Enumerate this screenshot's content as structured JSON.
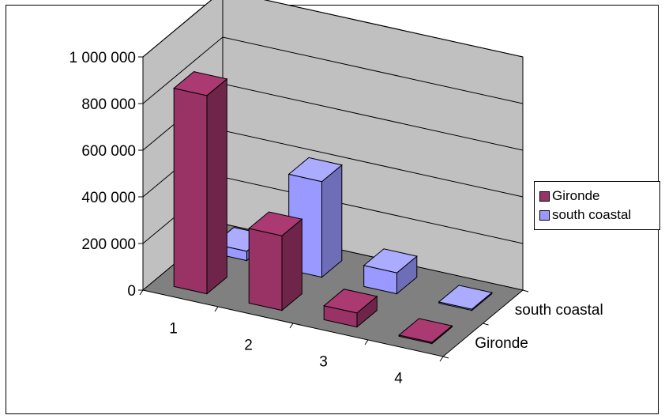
{
  "chart_data": {
    "type": "bar",
    "subtype": "3d-column",
    "categories": [
      "1",
      "2",
      "3",
      "4"
    ],
    "series": [
      {
        "name": "Gironde",
        "values": [
          850000,
          320000,
          60000,
          5000
        ],
        "color": "#993366"
      },
      {
        "name": "south coastal",
        "values": [
          40000,
          410000,
          90000,
          5000
        ],
        "color": "#9999ff"
      }
    ],
    "depth_labels": [
      "south coastal",
      "Gironde"
    ],
    "ylim": [
      0,
      1000000
    ],
    "yticks": [
      "0",
      "200 000",
      "400 000",
      "600 000",
      "800 000",
      "1 000 000"
    ],
    "grid": true,
    "legend": "right",
    "colors": {
      "walls": "#c0c0c0",
      "floor": "#808080"
    }
  }
}
